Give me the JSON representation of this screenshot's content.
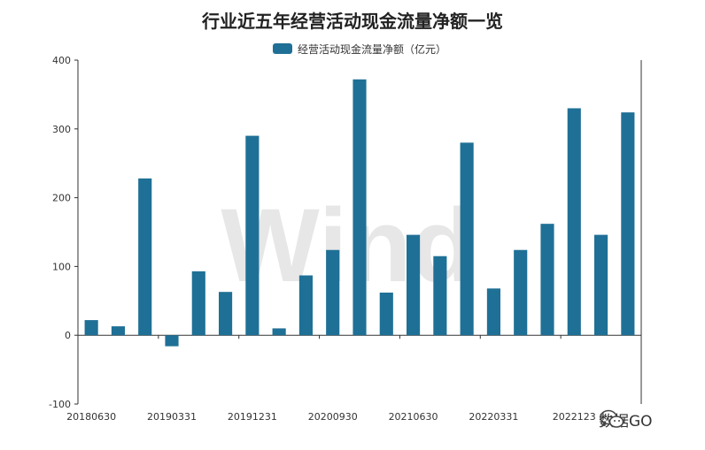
{
  "chart_data": {
    "type": "bar",
    "title": "行业近五年经营活动现金流量净额一览",
    "legend": "经营活动现金流量净额（亿元）",
    "legend_position": "top-center",
    "series": [
      {
        "name": "经营活动现金流量净额（亿元）",
        "color": "#1f7096",
        "values": [
          22,
          13,
          228,
          -16,
          93,
          63,
          290,
          10,
          87,
          124,
          372,
          62,
          146,
          115,
          280,
          68,
          124,
          162,
          330,
          146,
          324
        ]
      }
    ],
    "x_tick_labels": [
      "20180630",
      "20190331",
      "20191231",
      "20200930",
      "20210630",
      "20220331",
      "2022123"
    ],
    "y_ticks": [
      -100,
      0,
      100,
      200,
      300,
      400
    ],
    "ylim": [
      -100,
      400
    ],
    "grid": false
  },
  "watermark": {
    "logo_text": "Wind",
    "brand": "数据GO",
    "brand_icon": "wechat-icon"
  }
}
